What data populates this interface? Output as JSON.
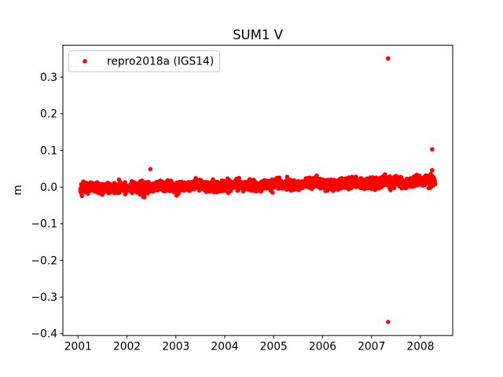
{
  "chart_data": {
    "type": "scatter",
    "title": "SUM1 V",
    "xlabel": "",
    "ylabel": "m",
    "xlim": [
      2000.69,
      2008.66
    ],
    "ylim": [
      -0.405,
      0.387
    ],
    "grid": false,
    "xticks": {
      "values": [
        2001,
        2002,
        2003,
        2004,
        2005,
        2006,
        2007,
        2008
      ],
      "labels": [
        "2001",
        "2002",
        "2003",
        "2004",
        "2005",
        "2006",
        "2007",
        "2008"
      ]
    },
    "yticks": {
      "values": [
        -0.4,
        -0.3,
        -0.2,
        -0.1,
        0.0,
        0.1,
        0.2,
        0.3
      ],
      "labels": [
        "−0.4",
        "−0.3",
        "−0.2",
        "−0.1",
        "0.0",
        "0.1",
        "0.2",
        "0.3"
      ]
    },
    "legend": {
      "position": "upper left",
      "entries": [
        {
          "label": "repro2018a (IGS14)",
          "color": "#ff0000",
          "marker": "dot"
        }
      ]
    },
    "colors": {
      "series": "#ff0000",
      "spine": "#000000",
      "legend_border": "#cccccc",
      "background": "#ffffff"
    },
    "series": [
      {
        "name": "repro2018a (IGS14)",
        "color": "#ff0000",
        "marker": "dot",
        "marker_radius_px": 2.8,
        "band": {
          "x_start": 2001.05,
          "x_end": 2008.3,
          "n_points": 2300,
          "mean_start": -0.004,
          "mean_end": 0.015,
          "noise_std": 0.0072,
          "noise_clip": 0.022,
          "seed": 42
        },
        "features": [
          {
            "desc": "dip cluster below band",
            "x_center": 2002.35,
            "x_spread": 0.015,
            "y_min": -0.029,
            "y_max": -0.017,
            "n": 5
          }
        ],
        "outliers": [
          [
            2002.48,
            0.049
          ],
          [
            2007.34,
            0.351
          ],
          [
            2007.34,
            -0.368
          ],
          [
            2008.24,
            0.103
          ],
          [
            2008.24,
            0.046
          ]
        ]
      }
    ]
  }
}
